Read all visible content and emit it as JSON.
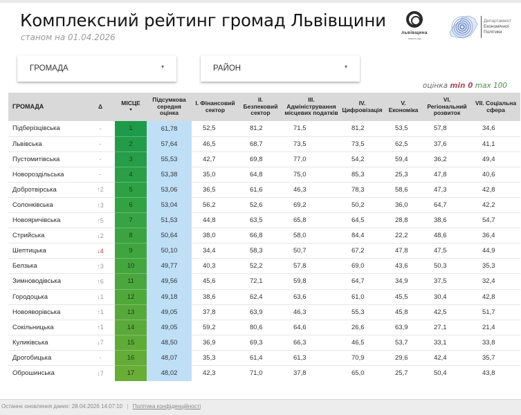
{
  "header": {
    "title": "Комплексний рейтинг громад Львівщини",
    "subtitle": "станом на 01.04.2026",
    "logo_left": {
      "name": "львівщина",
      "sub": "пишна рід"
    },
    "logo_right": {
      "line1": "Департамент",
      "line2": "Економічної",
      "line3": "Політики"
    }
  },
  "filters": {
    "community": {
      "label": "ГРОМАДА",
      "caret": "▾"
    },
    "district": {
      "label": "РАЙОН",
      "caret": "▾"
    }
  },
  "legend": {
    "prefix": "оцінка",
    "min_label": "min 0",
    "max_label": "max 100",
    "min_color": "#b04a5a",
    "max_color": "#4b8f46"
  },
  "table": {
    "columns": [
      "ГРОМАДА",
      "Δ",
      "МІСЦЕ",
      "Підсумкова середня оцінка",
      "I. Фінансовий сектор",
      "II. Безпековий сектор",
      "III. Адміністрування місцевих податків",
      "IV. Цифровізація",
      "V. Економіка",
      "VI. Регіональний розвиток",
      "VII. Соціальна сфера"
    ],
    "sort_indicator": "▾",
    "rows": [
      {
        "name": "Підберізцівська",
        "delta": "-",
        "rank": "1",
        "score": "61,78",
        "v": [
          "52,5",
          "81,2",
          "71,5",
          "81,2",
          "53,5",
          "57,8",
          "34,6"
        ],
        "rank_color": "#1e9a4b"
      },
      {
        "name": "Львівська",
        "delta": "-",
        "rank": "2",
        "score": "57,64",
        "v": [
          "46,5",
          "68,7",
          "73,5",
          "73,5",
          "62,5",
          "37,6",
          "41,1"
        ],
        "rank_color": "#229c49"
      },
      {
        "name": "Пустомитівська",
        "delta": "-",
        "rank": "3",
        "score": "55,53",
        "v": [
          "42,7",
          "69,8",
          "77,0",
          "54,2",
          "59,4",
          "36,2",
          "49,4"
        ],
        "rank_color": "#269e47"
      },
      {
        "name": "Новороздільська",
        "delta": "-",
        "rank": "4",
        "score": "53,38",
        "v": [
          "35,0",
          "64,8",
          "75,0",
          "85,3",
          "25,3",
          "47,8",
          "40,6"
        ],
        "rank_color": "#2a9f46"
      },
      {
        "name": "Добротвірська",
        "delta": "↑2",
        "rank": "5",
        "score": "53,06",
        "v": [
          "36,5",
          "61,6",
          "46,3",
          "78,3",
          "58,6",
          "47,3",
          "42,8"
        ],
        "rank_color": "#2ea144"
      },
      {
        "name": "Солонківська",
        "delta": "↑3",
        "rank": "6",
        "score": "53,04",
        "v": [
          "56,2",
          "52,6",
          "69,2",
          "50,2",
          "36,0",
          "64,7",
          "42,2"
        ],
        "rank_color": "#32a243"
      },
      {
        "name": "Новояричівська",
        "delta": "↑5",
        "rank": "7",
        "score": "51,53",
        "v": [
          "44,8",
          "63,5",
          "65,8",
          "64,5",
          "28,8",
          "38,6",
          "54,7"
        ],
        "rank_color": "#37a342"
      },
      {
        "name": "Стрийська",
        "delta": "↓2",
        "rank": "8",
        "score": "50,64",
        "v": [
          "38,0",
          "66,8",
          "58,0",
          "84,4",
          "22,2",
          "48,6",
          "36,4"
        ],
        "rank_color": "#3ba441"
      },
      {
        "name": "Шептицька",
        "delta": "↓4",
        "rank": "9",
        "score": "50,10",
        "v": [
          "34,4",
          "58,3",
          "50,7",
          "67,2",
          "47,8",
          "47,5",
          "44,9"
        ],
        "rank_color": "#40a53f",
        "delta_red": true
      },
      {
        "name": "Белзька",
        "delta": "↑3",
        "rank": "10",
        "score": "49,77",
        "v": [
          "40,3",
          "52,2",
          "57,8",
          "69,0",
          "43,6",
          "50,3",
          "35,3"
        ],
        "rank_color": "#45a63e"
      },
      {
        "name": "Зимноводівська",
        "delta": "↑6",
        "rank": "11",
        "score": "49,56",
        "v": [
          "45,6",
          "72,1",
          "59,8",
          "64,7",
          "34,9",
          "37,5",
          "32,4"
        ],
        "rank_color": "#4aa73d"
      },
      {
        "name": "Городоцька",
        "delta": "↓1",
        "rank": "12",
        "score": "49,18",
        "v": [
          "38,6",
          "62,4",
          "63,6",
          "61,0",
          "45,5",
          "30,4",
          "42,8"
        ],
        "rank_color": "#50a83b"
      },
      {
        "name": "Новояворівська",
        "delta": "↑1",
        "rank": "13",
        "score": "49,05",
        "v": [
          "37,8",
          "63,9",
          "46,3",
          "55,3",
          "45,8",
          "42,5",
          "51,7"
        ],
        "rank_color": "#55a93a"
      },
      {
        "name": "Сокільницька",
        "delta": "↑1",
        "rank": "14",
        "score": "49,05",
        "v": [
          "59,2",
          "80,6",
          "64,6",
          "26,6",
          "63,9",
          "27,1",
          "21,4"
        ],
        "rank_color": "#5aaa39"
      },
      {
        "name": "Куликівська",
        "delta": "↓7",
        "rank": "15",
        "score": "48,50",
        "v": [
          "36,9",
          "69,3",
          "66,3",
          "46,5",
          "53,7",
          "33,1",
          "33,8"
        ],
        "rank_color": "#5fab38"
      },
      {
        "name": "Дрогобицька",
        "delta": "-",
        "rank": "16",
        "score": "48,07",
        "v": [
          "35,3",
          "61,4",
          "61,3",
          "70,9",
          "29,6",
          "42,4",
          "35,7"
        ],
        "rank_color": "#63ac37"
      },
      {
        "name": "Оброшинська",
        "delta": "↓7",
        "rank": "17",
        "score": "48,02",
        "v": [
          "42,3",
          "71,0",
          "37,8",
          "65,0",
          "25,7",
          "50,4",
          "43,8"
        ],
        "rank_color": "#68ad36"
      }
    ]
  },
  "footer": {
    "updated": "Останнє оновлення даних: 28.04.2026 14:07:10",
    "separator": "|",
    "privacy_link": "Політика конфіденційності"
  }
}
